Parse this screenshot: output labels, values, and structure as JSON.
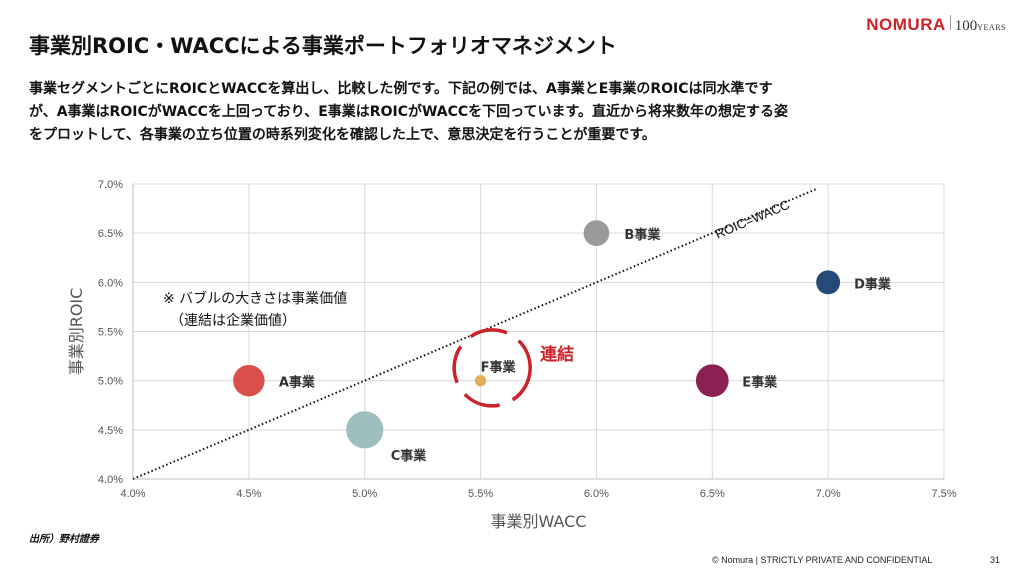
{
  "logo": {
    "brand": "NOMURA",
    "anniversary": "100",
    "anniversary_suffix": "YEARS"
  },
  "title": "事業別ROIC・WACCによる事業ポートフォリオマネジメント",
  "description": "事業セグメントごとにROICとWACCを算出し、比較した例です。下記の例では、A事業とE事業のROICは同水準ですが、A事業はROICがWACCを上回っており、E事業はROICがWACCを下回っています。直近から将来数年の想定する姿をプロットして、各事業の立ち位置の時系列変化を確認した上で、意思決定を行うことが重要です。",
  "chart_data": {
    "type": "scatter",
    "subtype": "bubble",
    "xlabel": "事業別WACC",
    "ylabel": "事業別ROIC",
    "xlim": [
      0.04,
      0.075
    ],
    "ylim": [
      0.04,
      0.07
    ],
    "x_ticks": [
      "4.0%",
      "4.5%",
      "5.0%",
      "5.5%",
      "6.0%",
      "6.5%",
      "7.0%",
      "7.5%"
    ],
    "y_ticks": [
      "4.0%",
      "4.5%",
      "5.0%",
      "5.5%",
      "6.0%",
      "6.5%",
      "7.0%"
    ],
    "grid": true,
    "points": [
      {
        "label": "A事業",
        "x": 0.045,
        "y": 0.05,
        "size": 2.0,
        "color": "#d9504b"
      },
      {
        "label": "B事業",
        "x": 0.06,
        "y": 0.065,
        "size": 1.2,
        "color": "#9a9a9a"
      },
      {
        "label": "C事業",
        "x": 0.05,
        "y": 0.045,
        "size": 3.0,
        "color": "#9dbfc0"
      },
      {
        "label": "D事業",
        "x": 0.07,
        "y": 0.06,
        "size": 1.0,
        "color": "#264a78"
      },
      {
        "label": "E事業",
        "x": 0.065,
        "y": 0.05,
        "size": 2.2,
        "color": "#8a2152"
      },
      {
        "label": "F事業",
        "x": 0.055,
        "y": 0.05,
        "size": 0.4,
        "color": "#e3ae55"
      }
    ],
    "reference_line": {
      "label": "ROIC=WACC",
      "from": [
        0.04,
        0.04
      ],
      "to": [
        0.0695,
        0.0695
      ]
    },
    "annotations": {
      "bubble_note_line1": "※ バブルの大きさは事業価値",
      "bubble_note_line2": "（連結は企業価値）",
      "consolidated_label": "連結",
      "consolidated_color": "#cc2229",
      "consolidated_center": [
        0.0555,
        0.0513
      ]
    }
  },
  "source": "出所）野村證券",
  "footer": "© Nomura | STRICTLY PRIVATE AND CONFIDENTIAL",
  "page_number": "31"
}
